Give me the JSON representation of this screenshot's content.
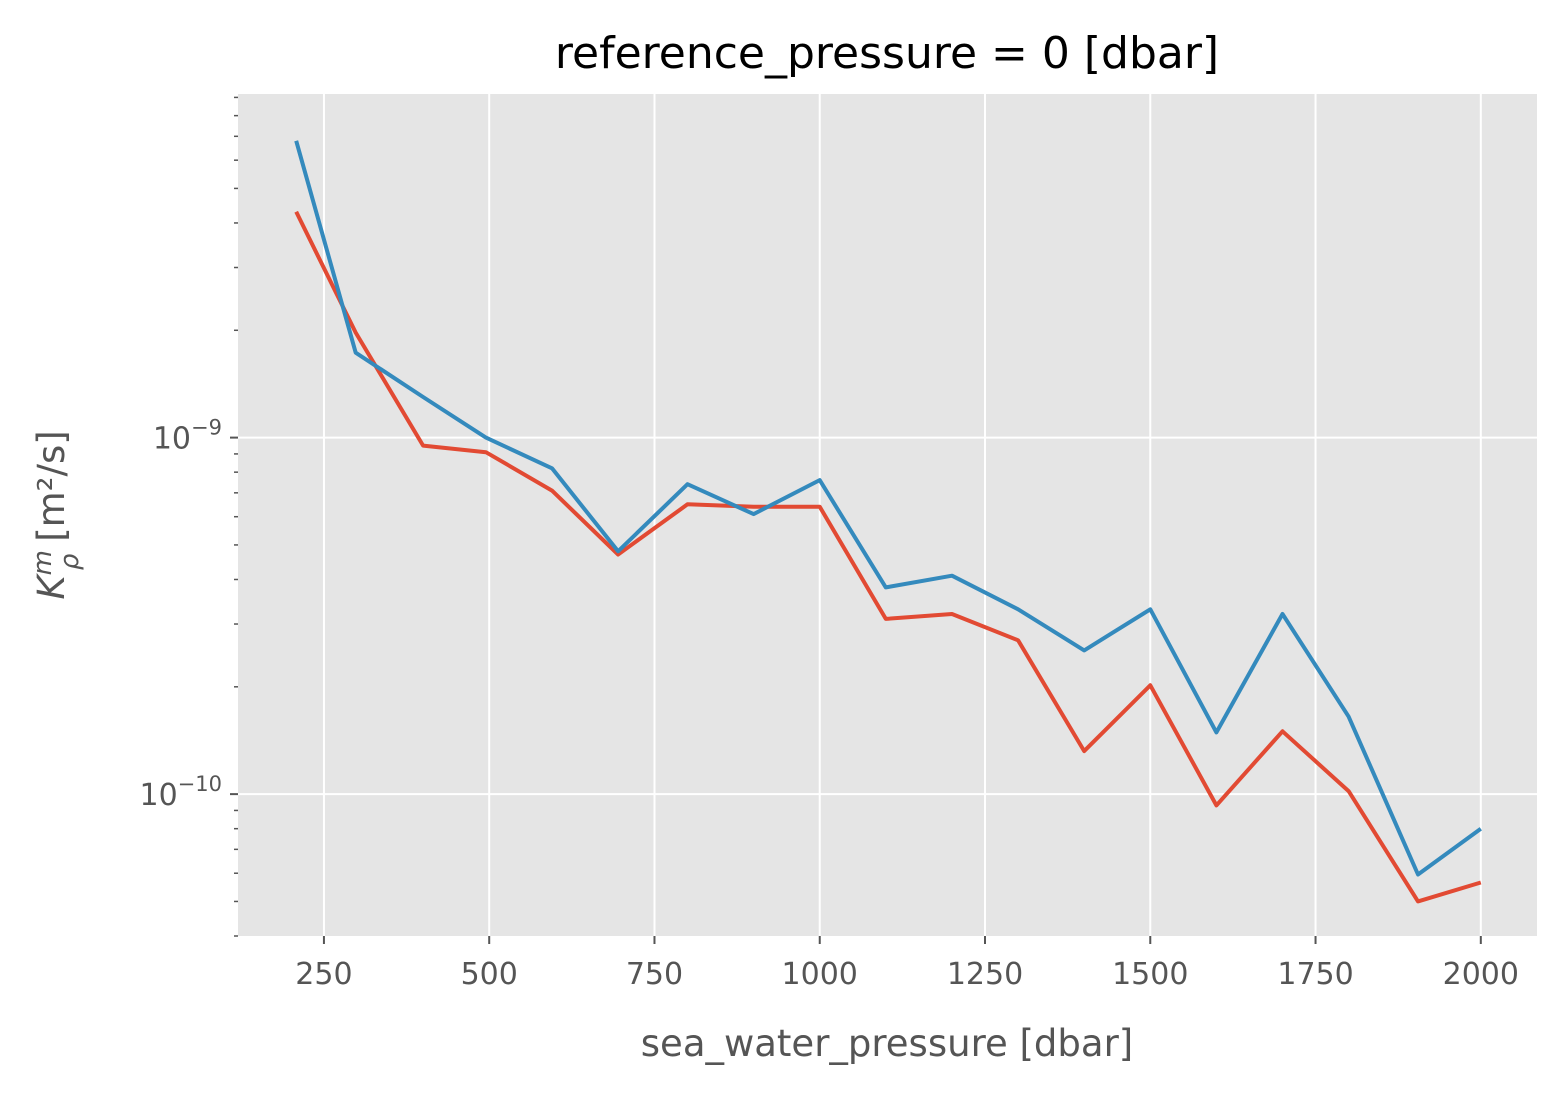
{
  "chart_data": {
    "type": "line",
    "title": "reference_pressure = 0 [dbar]",
    "xlabel": "sea_water_pressure [dbar]",
    "ylabel": {
      "symbol": "K",
      "superscript": "m",
      "subscript": "ρ",
      "unit": " [m²/s]"
    },
    "x_ticks": [
      {
        "value": 250,
        "label": "250"
      },
      {
        "value": 500,
        "label": "500"
      },
      {
        "value": 750,
        "label": "750"
      },
      {
        "value": 1000,
        "label": "1000"
      },
      {
        "value": 1250,
        "label": "1250"
      },
      {
        "value": 1500,
        "label": "1500"
      },
      {
        "value": 1750,
        "label": "1750"
      },
      {
        "value": 2000,
        "label": "2000"
      }
    ],
    "y_ticks": [
      {
        "value": 1e-09,
        "base": "10",
        "exponent": "−9"
      },
      {
        "value": 1e-10,
        "base": "10",
        "exponent": "−10"
      }
    ],
    "y_scale": "log",
    "xlim": [
      120,
      2085
    ],
    "ylim": [
      4e-11,
      9.2e-09
    ],
    "grid": true,
    "x": [
      208,
      298,
      400,
      495,
      595,
      695,
      800,
      900,
      1000,
      1100,
      1200,
      1300,
      1400,
      1500,
      1600,
      1700,
      1800,
      1905,
      2000
    ],
    "series": [
      {
        "color": "#E24A33",
        "values": [
          4.3e-09,
          1.97e-09,
          9.5e-10,
          9.1e-10,
          7.1e-10,
          4.7e-10,
          6.5e-10,
          6.4e-10,
          6.4e-10,
          3.1e-10,
          3.2e-10,
          2.7e-10,
          1.32e-10,
          2.02e-10,
          9.3e-11,
          1.5e-10,
          1.02e-10,
          5e-11,
          5.65e-11
        ]
      },
      {
        "color": "#348ABD",
        "values": [
          6.8e-09,
          1.73e-09,
          1.3e-09,
          1e-09,
          8.2e-10,
          4.8e-10,
          7.4e-10,
          6.1e-10,
          7.6e-10,
          3.8e-10,
          4.1e-10,
          3.3e-10,
          2.53e-10,
          3.3e-10,
          1.49e-10,
          3.2e-10,
          1.65e-10,
          5.95e-11,
          8e-11
        ]
      }
    ],
    "colors": {
      "plot_background": "#E5E5E5",
      "grid": "#FFFFFF",
      "text": "#555555"
    }
  }
}
